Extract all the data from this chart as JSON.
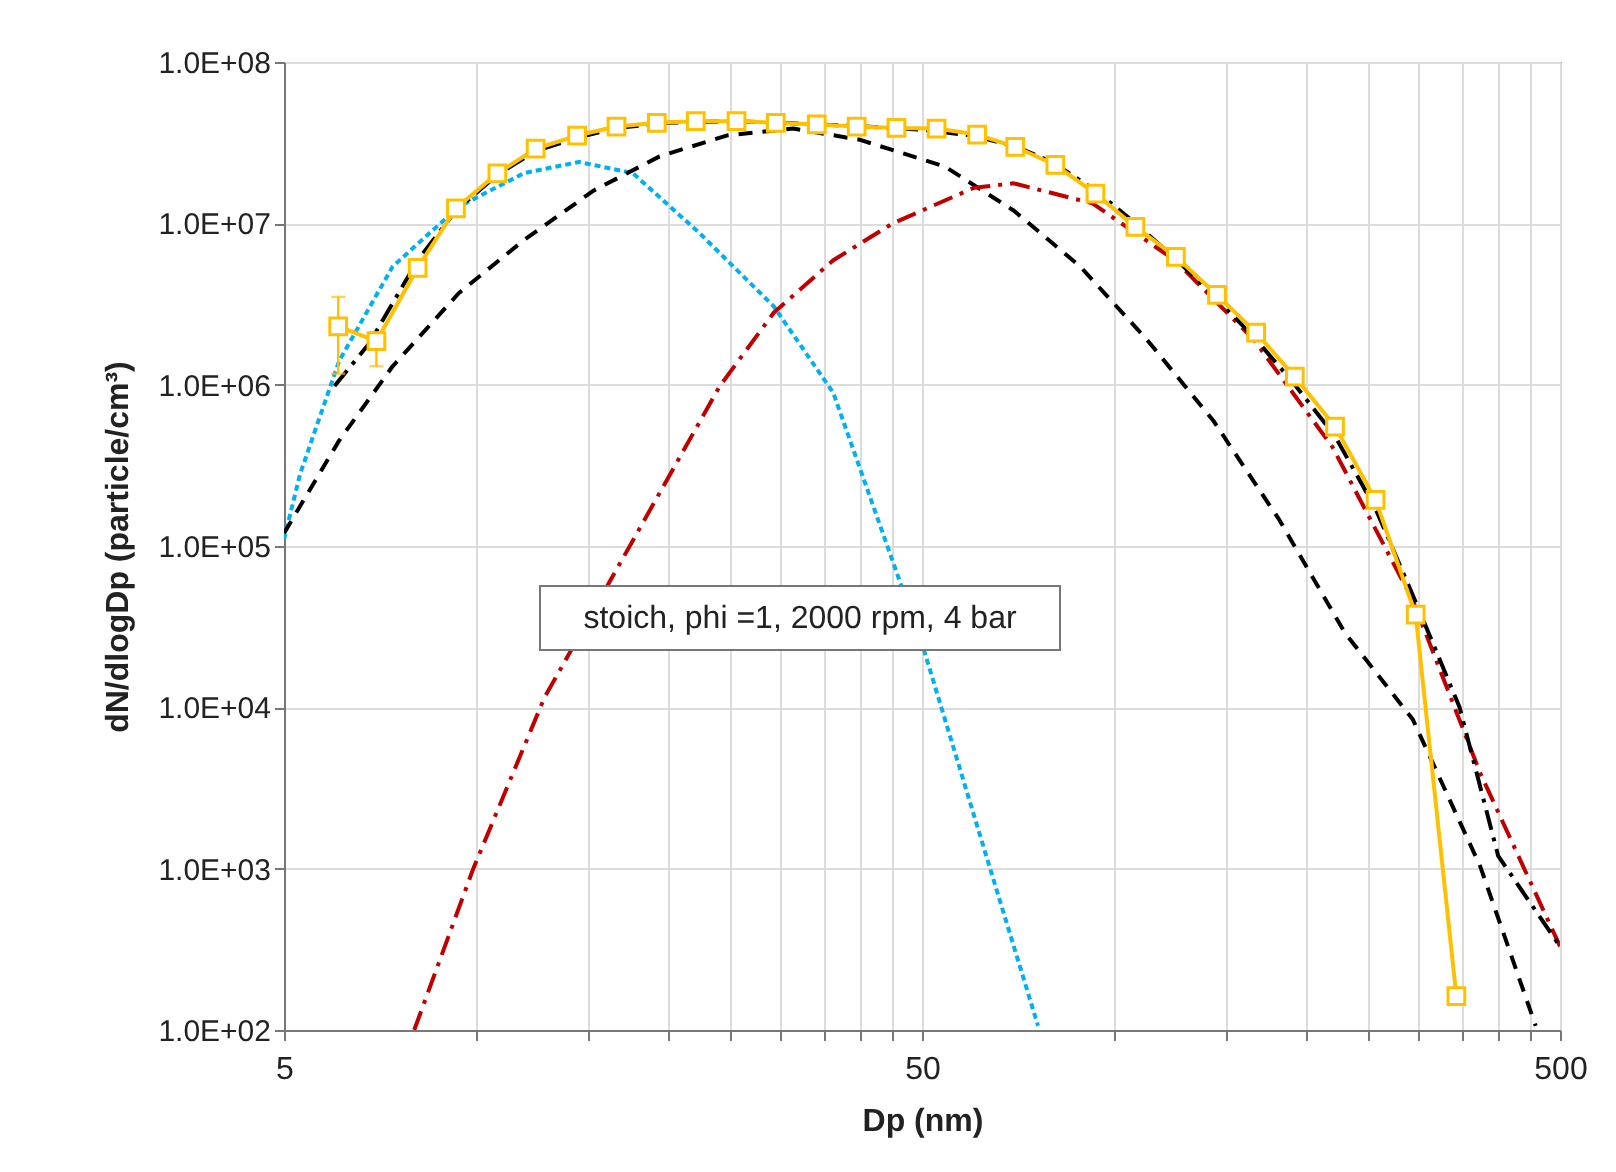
{
  "chart_data": {
    "type": "line",
    "xlabel": "Dp (nm)",
    "ylabel": "dN/dlogDp (particle/cm³)",
    "log": "xy",
    "grid": true,
    "annotations": [
      "stoich, phi =1, 2000 rpm, 4 bar"
    ],
    "xlim": [
      5,
      500
    ],
    "ylim": [
      100,
      100000000
    ],
    "xticks": [
      5,
      {
        "value": 10,
        "label": null
      },
      {
        "value": 15,
        "label": null
      },
      {
        "value": 20,
        "label": null
      },
      {
        "value": 25,
        "label": null
      },
      {
        "value": 30,
        "label": null
      },
      {
        "value": 35,
        "label": null
      },
      {
        "value": 40,
        "label": null
      },
      {
        "value": 45,
        "label": null
      },
      50,
      {
        "value": 100,
        "label": null
      },
      {
        "value": 150,
        "label": null
      },
      {
        "value": 200,
        "label": null
      },
      {
        "value": 250,
        "label": null
      },
      {
        "value": 300,
        "label": null
      },
      {
        "value": 350,
        "label": null
      },
      {
        "value": 400,
        "label": null
      },
      {
        "value": 450,
        "label": null
      },
      500
    ],
    "yticks": [
      {
        "value": 100,
        "label": "1.0E+02"
      },
      {
        "value": 1000,
        "label": "1.0E+03"
      },
      {
        "value": 10000,
        "label": "1.0E+04"
      },
      {
        "value": 100000,
        "label": "1.0E+05"
      },
      {
        "value": 1000000,
        "label": "1.0E+06"
      },
      {
        "value": 10000000,
        "label": "1.0E+07"
      },
      {
        "value": 100000000,
        "label": "1.0E+08"
      }
    ],
    "series": [
      {
        "color": "#00b0f0",
        "line_style": "dotted",
        "marker": "none",
        "x": [
          5,
          5.3,
          6.1,
          7.4,
          9.4,
          11.9,
          14.5,
          17.6,
          22.4,
          29.3,
          36.3,
          46,
          50.3,
          61.5,
          76
        ],
        "values": [
          110000,
          280000,
          1400000,
          5400000,
          12700000,
          20500000,
          24000000,
          20500000,
          8700000,
          3050000,
          890000,
          null,
          23000,
          1660,
          106
        ]
      },
      {
        "color": "#000000",
        "line_style": "dashed",
        "marker": "none",
        "x": [
          5,
          6.1,
          7.4,
          9.4,
          11.9,
          15.3,
          19.4,
          24.7,
          31.4,
          39.9,
          54.3,
          69.6,
          88.5,
          112.6,
          143,
          181.6,
          230,
          294,
          375,
          458
        ],
        "values": [
          120000,
          450000,
          1300000,
          3700000,
          7900000,
          16000000,
          26000000,
          35000000,
          38700000,
          33000000,
          22500000,
          12000000,
          5400000,
          1900000,
          600000,
          145000,
          29000,
          8400,
          1030,
          106
        ]
      },
      {
        "color": "#c00000",
        "line_style": "dashdot",
        "marker": "none",
        "x": [
          8,
          9.9,
          12.8,
          15.6,
          24.1,
          29.3,
          36.3,
          45,
          60.3,
          69.6,
          92.5,
          124.6,
          165.6,
          220,
          294,
          375,
          500
        ],
        "values": [
          100,
          1000,
          11500,
          null,
          980000,
          2800000,
          5900000,
          10000000,
          16600000,
          17700000,
          13300000,
          5900000,
          1900000,
          410000,
          46000,
          3900,
          330
        ]
      },
      {
        "color": "#000000",
        "line_style": "dashdot",
        "marker": "none",
        "x": [
          6,
          6.8,
          8.1,
          9.3,
          10.8,
          12.4,
          14.4,
          16.6,
          20,
          25,
          30,
          40,
          50,
          60,
          70,
          80,
          93.5,
          108,
          125,
          145,
          167,
          192,
          222,
          257,
          297,
          348,
          400,
          500
        ],
        "values": [
          980000,
          1800000,
          5900000,
          12000000,
          20000000,
          28000000,
          34000000,
          39000000,
          42000000,
          43000000,
          42000000,
          40000000,
          38000000,
          35000000,
          30000000,
          24000000,
          16000000,
          10000000,
          6000000,
          3400000,
          1900000,
          1000000,
          480000,
          170000,
          45000,
          10000,
          1200,
          330
        ]
      },
      {
        "color": "#ffc000",
        "line_style": "solid",
        "marker": "square",
        "x": [
          6.08,
          6.98,
          8.1,
          9.3,
          10.8,
          12.4,
          14.4,
          16.6,
          19.2,
          22.1,
          25.6,
          29.5,
          34.2,
          39.5,
          45.6,
          52.7,
          61,
          70,
          80.9,
          93.5,
          108,
          125,
          145,
          167,
          192,
          222,
          257,
          297,
          344
        ],
        "values": [
          2300000,
          1860000,
          5300000,
          12400000,
          20400000,
          29000000,
          35000000,
          39800000,
          42000000,
          43000000,
          43000000,
          42000000,
          41000000,
          39800000,
          39000000,
          38700000,
          35500000,
          29800000,
          23000000,
          15300000,
          9500000,
          6200000,
          3600000,
          2100000,
          1120000,
          550000,
          193000,
          37500,
          162
        ],
        "errors": [
          [
            1170000,
            3500000
          ],
          [
            1300000,
            2100000
          ],
          null,
          null,
          null,
          null,
          null,
          null,
          null,
          null,
          null,
          null,
          null,
          null,
          null,
          null,
          null,
          null,
          null,
          null,
          null,
          null,
          null,
          null,
          null,
          null,
          null,
          null,
          null
        ]
      }
    ]
  }
}
